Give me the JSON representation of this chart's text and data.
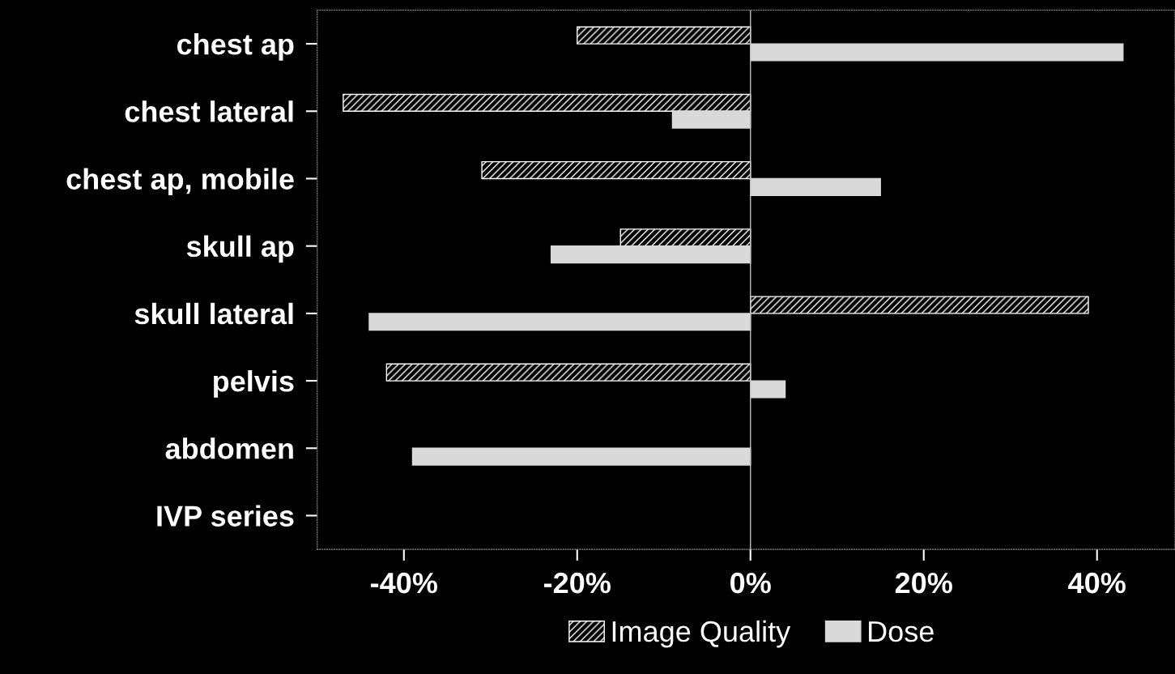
{
  "chart_data": {
    "type": "bar",
    "orientation": "horizontal",
    "categories": [
      "chest ap",
      "chest lateral",
      "chest ap, mobile",
      "skull ap",
      "skull lateral",
      "pelvis",
      "abdomen",
      "IVP series"
    ],
    "series": [
      {
        "name": "Image Quality",
        "color": "#ffffff",
        "values": [
          -20,
          -47,
          -31,
          -15,
          39,
          -42,
          null,
          null
        ]
      },
      {
        "name": "Dose",
        "color": "#d9d9d9",
        "values": [
          43,
          -9,
          15,
          -23,
          -44,
          4,
          -39,
          null
        ]
      }
    ],
    "xlim": [
      -50,
      49
    ],
    "xticks": [
      {
        "value": -40,
        "label": "-40%"
      },
      {
        "value": -20,
        "label": "-20%"
      },
      {
        "value": 0,
        "label": "0%"
      },
      {
        "value": 20,
        "label": "20%"
      },
      {
        "value": 40,
        "label": "40%"
      }
    ],
    "ref_lines": [
      {
        "axis": "x",
        "value": 0,
        "color": "#bfbfbf"
      }
    ],
    "grid": false,
    "legend": "bottom"
  }
}
